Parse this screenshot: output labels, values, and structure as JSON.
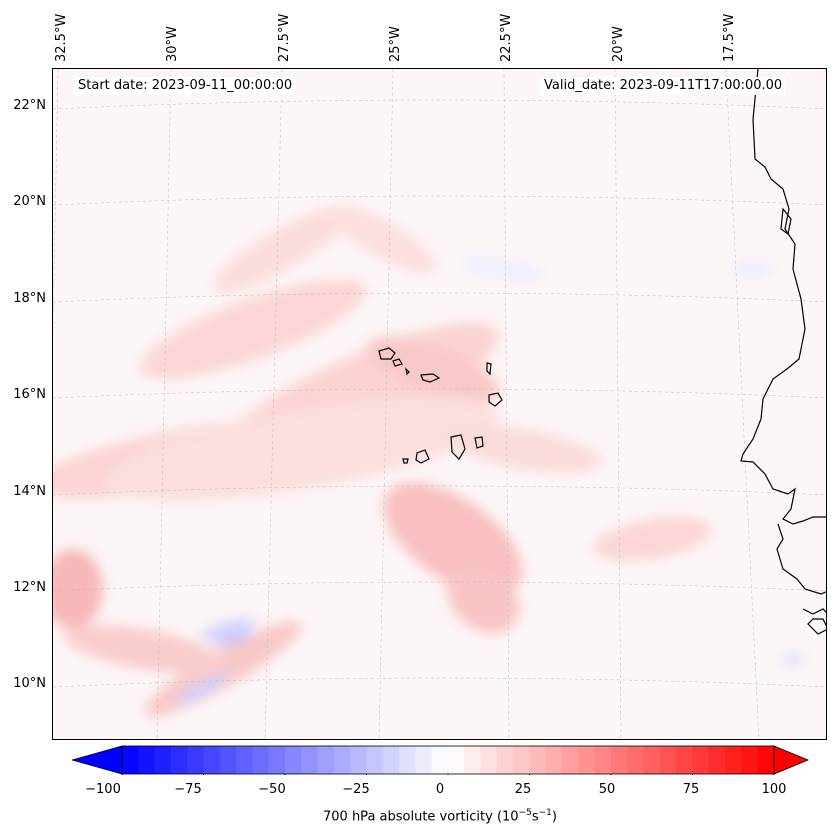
{
  "map": {
    "start_date": "Start date: 2023-09-11_00:00:00",
    "valid_date": "Valid_date: 2023-09-11T17:00:00.00",
    "lat_labels": [
      "22°N",
      "20°N",
      "18°N",
      "16°N",
      "14°N",
      "12°N",
      "10°N"
    ],
    "lon_labels": [
      "32.5°W",
      "30°W",
      "27.5°W",
      "25°W",
      "22.5°W",
      "20°W",
      "17.5°W"
    ],
    "lat_range": [
      9,
      22.5
    ],
    "lon_range": [
      -32.5,
      -15.5
    ],
    "gridlines": true,
    "field": "700 hPa absolute vorticity",
    "coastline_color": "#000000"
  },
  "colorbar": {
    "ticks": [
      "−100",
      "−75",
      "−50",
      "−25",
      "0",
      "25",
      "50",
      "75",
      "100"
    ],
    "range": [
      -100,
      100
    ],
    "colormap": "bwr",
    "extend": "both",
    "label": "700 hPa absolute vorticity (10",
    "label_exp1": "−5",
    "label_mid": "s",
    "label_exp2": "−1",
    "label_end": ")",
    "low_color": "#0000ff",
    "mid_color": "#ffffff",
    "high_color": "#ff0000"
  }
}
